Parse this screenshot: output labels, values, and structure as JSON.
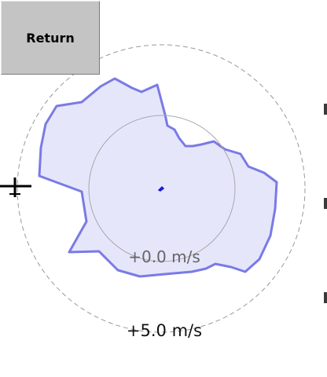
{
  "toolbar": {
    "return_label": "Return"
  },
  "polar_plot": {
    "ring_labels": {
      "inner": "+0.0 m/s",
      "outer": "+5.0 m/s"
    },
    "colors": {
      "fill": "#e6e6fb",
      "stroke": "#7a7ae6",
      "ring_stroke": "#999999",
      "center_marker": "#1a1ad6",
      "crosshair": "#000000",
      "inner_label": "#666666",
      "outer_label": "#111111"
    }
  }
}
